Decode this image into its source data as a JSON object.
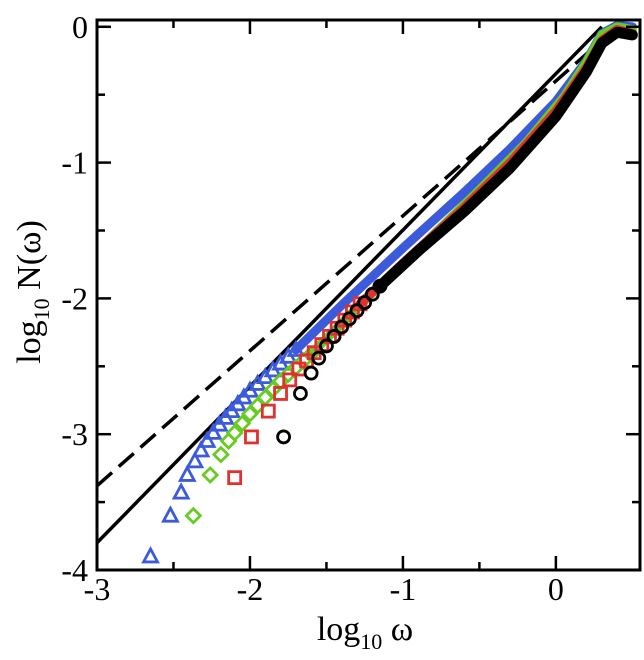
{
  "chart_data": {
    "type": "scatter",
    "title": "",
    "xlabel": {
      "base": "log",
      "sub": "10",
      "rest": " ω"
    },
    "ylabel": {
      "base": "log",
      "sub": "10",
      "rest": " N(ω)"
    },
    "xlim": [
      -3,
      0.55
    ],
    "ylim": [
      -4,
      0.05
    ],
    "grid": false,
    "legend": "none",
    "x_ticks": [
      {
        "value": -3,
        "label": "-3"
      },
      {
        "value": -2,
        "label": "-2"
      },
      {
        "value": -1,
        "label": "-1"
      },
      {
        "value": 0,
        "label": "0"
      }
    ],
    "y_ticks": [
      {
        "value": -4,
        "label": "-4"
      },
      {
        "value": -3,
        "label": "-3"
      },
      {
        "value": -2,
        "label": "-2"
      },
      {
        "value": -1,
        "label": "-1"
      },
      {
        "value": 0,
        "label": "0"
      }
    ],
    "x_minor_ticks": [
      -2.5,
      -1.5,
      -0.5
    ],
    "y_minor_ticks": [
      -3.5,
      -2.5,
      -1.5,
      -0.5
    ],
    "reference_lines": [
      {
        "style": "solid",
        "color": "#000000",
        "points": [
          [
            -3,
            -3.8
          ],
          [
            0.3,
            0.0
          ]
        ]
      },
      {
        "style": "dashed",
        "color": "#000000",
        "points": [
          [
            -3,
            -3.38
          ],
          [
            0.3,
            -0.1
          ]
        ]
      }
    ],
    "series": [
      {
        "marker": "triangle",
        "color": "#3b5bdb",
        "points": [
          [
            -2.65,
            -3.9
          ],
          [
            -2.52,
            -3.6
          ],
          [
            -2.45,
            -3.43
          ],
          [
            -2.41,
            -3.3
          ],
          [
            -2.36,
            -3.2
          ],
          [
            -2.32,
            -3.12
          ],
          [
            -2.28,
            -3.05
          ],
          [
            -2.24,
            -2.99
          ],
          [
            -2.2,
            -2.93
          ],
          [
            -2.16,
            -2.88
          ],
          [
            -2.12,
            -2.83
          ],
          [
            -2.08,
            -2.78
          ],
          [
            -2.04,
            -2.73
          ],
          [
            -2.0,
            -2.68
          ],
          [
            -1.95,
            -2.63
          ],
          [
            -1.9,
            -2.58
          ],
          [
            -1.85,
            -2.53
          ],
          [
            -1.8,
            -2.48
          ],
          [
            -1.75,
            -2.43
          ],
          [
            -1.7,
            -2.38
          ]
        ],
        "curve": [
          [
            -1.7,
            -2.38
          ],
          [
            -1.4,
            -2.05
          ],
          [
            -1.0,
            -1.63
          ],
          [
            -0.6,
            -1.22
          ],
          [
            -0.3,
            -0.9
          ],
          [
            0.0,
            -0.55
          ],
          [
            0.2,
            -0.25
          ],
          [
            0.3,
            -0.05
          ],
          [
            0.4,
            0.01
          ],
          [
            0.5,
            0.0
          ]
        ]
      },
      {
        "marker": "diamond",
        "color": "#66cc22",
        "points": [
          [
            -2.37,
            -3.6
          ],
          [
            -2.26,
            -3.3
          ],
          [
            -2.19,
            -3.15
          ],
          [
            -2.14,
            -3.05
          ],
          [
            -2.1,
            -2.99
          ],
          [
            -2.05,
            -2.92
          ],
          [
            -2.0,
            -2.85
          ],
          [
            -1.95,
            -2.79
          ],
          [
            -1.9,
            -2.73
          ],
          [
            -1.85,
            -2.67
          ],
          [
            -1.8,
            -2.61
          ],
          [
            -1.75,
            -2.56
          ],
          [
            -1.7,
            -2.51
          ],
          [
            -1.65,
            -2.46
          ],
          [
            -1.6,
            -2.41
          ]
        ],
        "curve": [
          [
            -1.6,
            -2.41
          ],
          [
            -1.3,
            -2.07
          ],
          [
            -0.9,
            -1.64
          ],
          [
            -0.5,
            -1.2
          ],
          [
            -0.2,
            -0.86
          ],
          [
            0.05,
            -0.52
          ],
          [
            0.2,
            -0.26
          ],
          [
            0.3,
            -0.06
          ],
          [
            0.4,
            0.0
          ],
          [
            0.5,
            -0.02
          ]
        ]
      },
      {
        "marker": "square",
        "color": "#e03131",
        "points": [
          [
            -2.1,
            -3.32
          ],
          [
            -1.99,
            -3.02
          ],
          [
            -1.88,
            -2.83
          ],
          [
            -1.8,
            -2.7
          ],
          [
            -1.74,
            -2.6
          ],
          [
            -1.68,
            -2.52
          ],
          [
            -1.63,
            -2.46
          ],
          [
            -1.58,
            -2.4
          ],
          [
            -1.53,
            -2.34
          ],
          [
            -1.48,
            -2.28
          ],
          [
            -1.43,
            -2.22
          ],
          [
            -1.38,
            -2.16
          ],
          [
            -1.33,
            -2.1
          ],
          [
            -1.28,
            -2.04
          ]
        ],
        "curve": [
          [
            -1.28,
            -2.04
          ],
          [
            -1.0,
            -1.74
          ],
          [
            -0.6,
            -1.33
          ],
          [
            -0.3,
            -1.0
          ],
          [
            0.0,
            -0.62
          ],
          [
            0.2,
            -0.3
          ],
          [
            0.3,
            -0.1
          ],
          [
            0.4,
            -0.02
          ],
          [
            0.5,
            -0.05
          ]
        ]
      },
      {
        "marker": "circle",
        "color": "#000000",
        "points": [
          [
            -1.78,
            -3.02
          ],
          [
            -1.67,
            -2.7
          ],
          [
            -1.6,
            -2.55
          ],
          [
            -1.55,
            -2.44
          ],
          [
            -1.5,
            -2.35
          ],
          [
            -1.45,
            -2.28
          ],
          [
            -1.4,
            -2.21
          ],
          [
            -1.35,
            -2.15
          ],
          [
            -1.3,
            -2.09
          ],
          [
            -1.25,
            -2.03
          ],
          [
            -1.2,
            -1.97
          ],
          [
            -1.15,
            -1.91
          ]
        ],
        "curve": [
          [
            -1.15,
            -1.91
          ],
          [
            -0.9,
            -1.65
          ],
          [
            -0.6,
            -1.36
          ],
          [
            -0.3,
            -1.04
          ],
          [
            0.0,
            -0.66
          ],
          [
            0.2,
            -0.33
          ],
          [
            0.3,
            -0.12
          ],
          [
            0.4,
            -0.04
          ],
          [
            0.5,
            -0.06
          ]
        ]
      }
    ]
  }
}
